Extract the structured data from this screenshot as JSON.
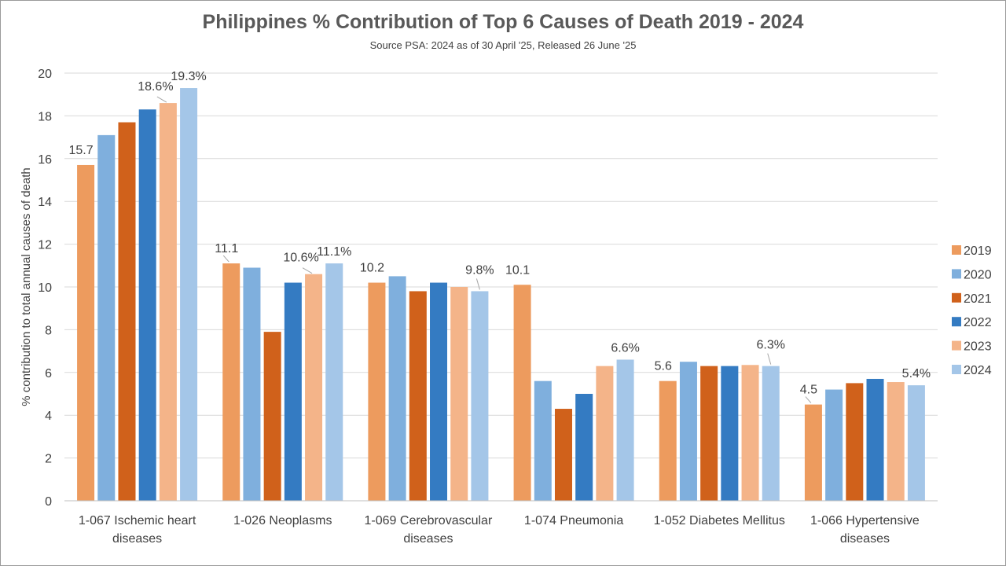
{
  "chart_data": {
    "type": "bar",
    "title": "Philippines % Contribution of Top 6 Causes of Death 2019 - 2024",
    "subtitle": "Source PSA: 2024 as of 30 April '25, Released 26 June '25",
    "xlabel": "",
    "ylabel": "% contribution to total annual causes of death",
    "ylim": [
      0,
      20
    ],
    "yticks": [
      0,
      2,
      4,
      6,
      8,
      10,
      12,
      14,
      16,
      18,
      20
    ],
    "grid": true,
    "legend_position": "right",
    "categories": [
      [
        "1-067  Ischemic heart",
        "diseases"
      ],
      [
        "1-026  Neoplasms"
      ],
      [
        "1-069  Cerebrovascular",
        "diseases"
      ],
      [
        "1-074  Pneumonia"
      ],
      [
        "1-052  Diabetes Mellitus"
      ],
      [
        "1-066  Hypertensive",
        "diseases"
      ]
    ],
    "series": [
      {
        "name": "2019",
        "color": "#ED9B5E",
        "values": [
          15.7,
          11.1,
          10.2,
          10.1,
          5.6,
          4.5
        ]
      },
      {
        "name": "2020",
        "color": "#7FAFDD",
        "values": [
          17.1,
          10.9,
          10.5,
          5.6,
          6.5,
          5.2
        ]
      },
      {
        "name": "2021",
        "color": "#D0611B",
        "values": [
          17.7,
          7.9,
          9.8,
          4.3,
          6.3,
          5.5
        ]
      },
      {
        "name": "2022",
        "color": "#347BC2",
        "values": [
          18.3,
          10.2,
          10.2,
          5.0,
          6.3,
          5.7
        ]
      },
      {
        "name": "2023",
        "color": "#F4B489",
        "values": [
          18.6,
          10.6,
          10.0,
          6.3,
          6.35,
          5.55
        ]
      },
      {
        "name": "2024",
        "color": "#A4C6E8",
        "values": [
          19.3,
          11.1,
          9.8,
          6.6,
          6.3,
          5.4
        ]
      }
    ],
    "data_labels": [
      {
        "category": 0,
        "series": 0,
        "text": "15.7"
      },
      {
        "category": 0,
        "series": 4,
        "text": "18.6%"
      },
      {
        "category": 0,
        "series": 5,
        "text": "19.3%"
      },
      {
        "category": 1,
        "series": 0,
        "text": "11.1"
      },
      {
        "category": 1,
        "series": 4,
        "text": "10.6%"
      },
      {
        "category": 1,
        "series": 5,
        "text": "11.1%"
      },
      {
        "category": 2,
        "series": 0,
        "text": "10.2"
      },
      {
        "category": 2,
        "series": 5,
        "text": "9.8%"
      },
      {
        "category": 3,
        "series": 0,
        "text": "10.1"
      },
      {
        "category": 3,
        "series": 5,
        "text": "6.6%"
      },
      {
        "category": 4,
        "series": 0,
        "text": "5.6"
      },
      {
        "category": 4,
        "series": 5,
        "text": "6.3%"
      },
      {
        "category": 5,
        "series": 0,
        "text": "4.5"
      },
      {
        "category": 5,
        "series": 5,
        "text": "5.4%"
      }
    ]
  }
}
